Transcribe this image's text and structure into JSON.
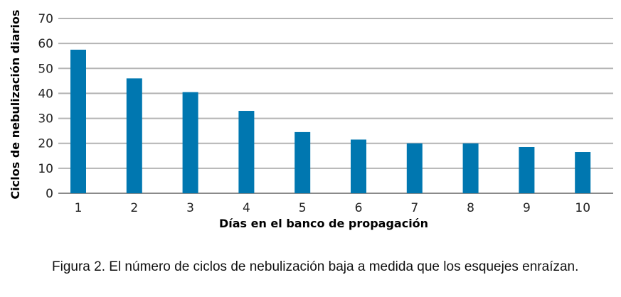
{
  "chart_data": {
    "type": "bar",
    "categories": [
      "1",
      "2",
      "3",
      "4",
      "5",
      "6",
      "7",
      "8",
      "9",
      "10"
    ],
    "values": [
      57.5,
      46,
      40.5,
      33,
      24.5,
      21.5,
      20,
      20,
      18.5,
      16.5
    ],
    "xlabel": "Días en el banco de propagación",
    "ylabel": "Ciclos de nebulización diarios",
    "ylim": [
      0,
      70
    ],
    "yticks": [
      "0",
      "10",
      "20",
      "30",
      "40",
      "50",
      "60",
      "70"
    ],
    "grid": true,
    "bar_color": "#0077b0"
  },
  "caption": "Figura 2. El número de ciclos de nebulización baja a medida que los esquejes enraízan."
}
